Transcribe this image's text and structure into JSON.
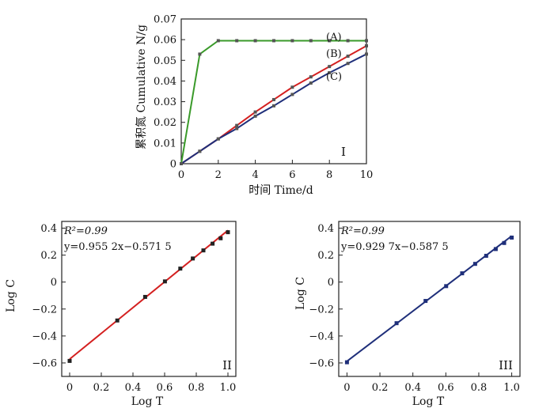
{
  "chart_data": [
    {
      "type": "line",
      "panel_label": "I",
      "xlabel": "时间 Time/d",
      "ylabel": "累积氮 Cumulative N/g",
      "xlim": [
        0,
        10
      ],
      "ylim": [
        0,
        0.07
      ],
      "x_ticks": [
        "0",
        "2",
        "4",
        "6",
        "8",
        "10"
      ],
      "y_ticks": [
        "0",
        "0.01",
        "0.02",
        "0.03",
        "0.04",
        "0.05",
        "0.06",
        "0.07"
      ],
      "grid": false,
      "series": [
        {
          "name": "(A)",
          "color": "#3a9a2a",
          "x": [
            0,
            1,
            2,
            3,
            4,
            5,
            6,
            7,
            8,
            9,
            10
          ],
          "y": [
            0,
            0.053,
            0.0595,
            0.0595,
            0.0595,
            0.0595,
            0.0595,
            0.0595,
            0.0595,
            0.0595,
            0.0595
          ]
        },
        {
          "name": "(B)",
          "color": "#d42020",
          "x": [
            0,
            1,
            2,
            3,
            4,
            5,
            6,
            7,
            8,
            9,
            10
          ],
          "y": [
            0,
            0.006,
            0.012,
            0.0185,
            0.025,
            0.031,
            0.037,
            0.042,
            0.047,
            0.052,
            0.057
          ]
        },
        {
          "name": "(C)",
          "color": "#1f2f7a",
          "x": [
            0,
            1,
            2,
            3,
            4,
            5,
            6,
            7,
            8,
            9,
            10
          ],
          "y": [
            0,
            0.006,
            0.012,
            0.017,
            0.023,
            0.028,
            0.0335,
            0.039,
            0.044,
            0.0485,
            0.053
          ]
        }
      ]
    },
    {
      "type": "scatter",
      "panel_label": "II",
      "xlabel": "Log T",
      "ylabel": "Log C",
      "xlim": [
        -0.05,
        1.05
      ],
      "ylim": [
        -0.7,
        0.45
      ],
      "x_ticks": [
        "0",
        "0.2",
        "0.4",
        "0.6",
        "0.8",
        "1.0"
      ],
      "y_ticks": [
        "0.4",
        "0.2",
        "0",
        "−0.2",
        "−0.4",
        "−0.6"
      ],
      "annotation_r2": "R²=0.99",
      "annotation_eq": "y=0.955 2x−0.571 5",
      "fit": {
        "slope": 0.9552,
        "intercept": -0.5715,
        "color": "#d42020"
      },
      "series": [
        {
          "color": "#222222",
          "x": [
            0,
            0.301,
            0.477,
            0.602,
            0.699,
            0.778,
            0.845,
            0.903,
            0.954,
            1.0
          ],
          "y": [
            -0.585,
            -0.285,
            -0.11,
            0.005,
            0.1,
            0.175,
            0.235,
            0.285,
            0.325,
            0.37
          ]
        }
      ]
    },
    {
      "type": "scatter",
      "panel_label": "III",
      "xlabel": "Log T",
      "ylabel": "Log C",
      "xlim": [
        -0.05,
        1.05
      ],
      "ylim": [
        -0.7,
        0.45
      ],
      "x_ticks": [
        "0",
        "0.2",
        "0.4",
        "0.6",
        "0.8",
        "1.0"
      ],
      "y_ticks": [
        "0.4",
        "0.2",
        "0",
        "−0.2",
        "−0.4",
        "−0.6"
      ],
      "annotation_r2": "R²=0.99",
      "annotation_eq": "y=0.929 7x−0.587 5",
      "fit": {
        "slope": 0.9297,
        "intercept": -0.5875,
        "color": "#1f2f7a"
      },
      "series": [
        {
          "color": "#1f2f7a",
          "x": [
            0,
            0.301,
            0.477,
            0.602,
            0.699,
            0.778,
            0.845,
            0.903,
            0.954,
            1.0
          ],
          "y": [
            -0.595,
            -0.305,
            -0.14,
            -0.03,
            0.065,
            0.135,
            0.195,
            0.245,
            0.29,
            0.33
          ]
        }
      ]
    }
  ]
}
